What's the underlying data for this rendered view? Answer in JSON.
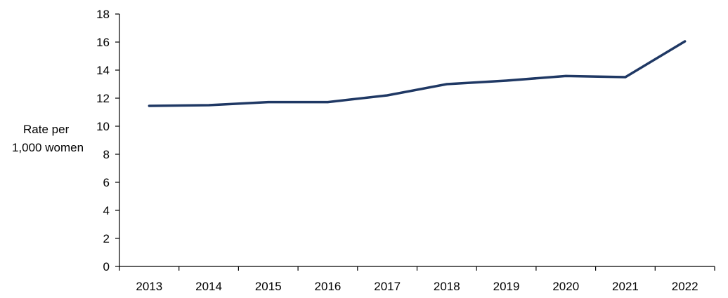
{
  "chart_data": {
    "type": "line",
    "title": "",
    "xlabel": "",
    "ylabel_lines": [
      "Rate per",
      "1,000 women"
    ],
    "categories": [
      "2013",
      "2014",
      "2015",
      "2016",
      "2017",
      "2018",
      "2019",
      "2020",
      "2021",
      "2022"
    ],
    "series": [
      {
        "values": [
          11.45,
          11.5,
          11.72,
          11.72,
          12.2,
          13.0,
          13.25,
          13.58,
          13.5,
          16.05
        ]
      }
    ],
    "ylim": [
      0,
      18
    ],
    "yticks": [
      "0",
      "2",
      "4",
      "6",
      "8",
      "10",
      "12",
      "14",
      "16",
      "18"
    ],
    "grid": false,
    "legend": "none",
    "line_color": "#1F3864"
  }
}
